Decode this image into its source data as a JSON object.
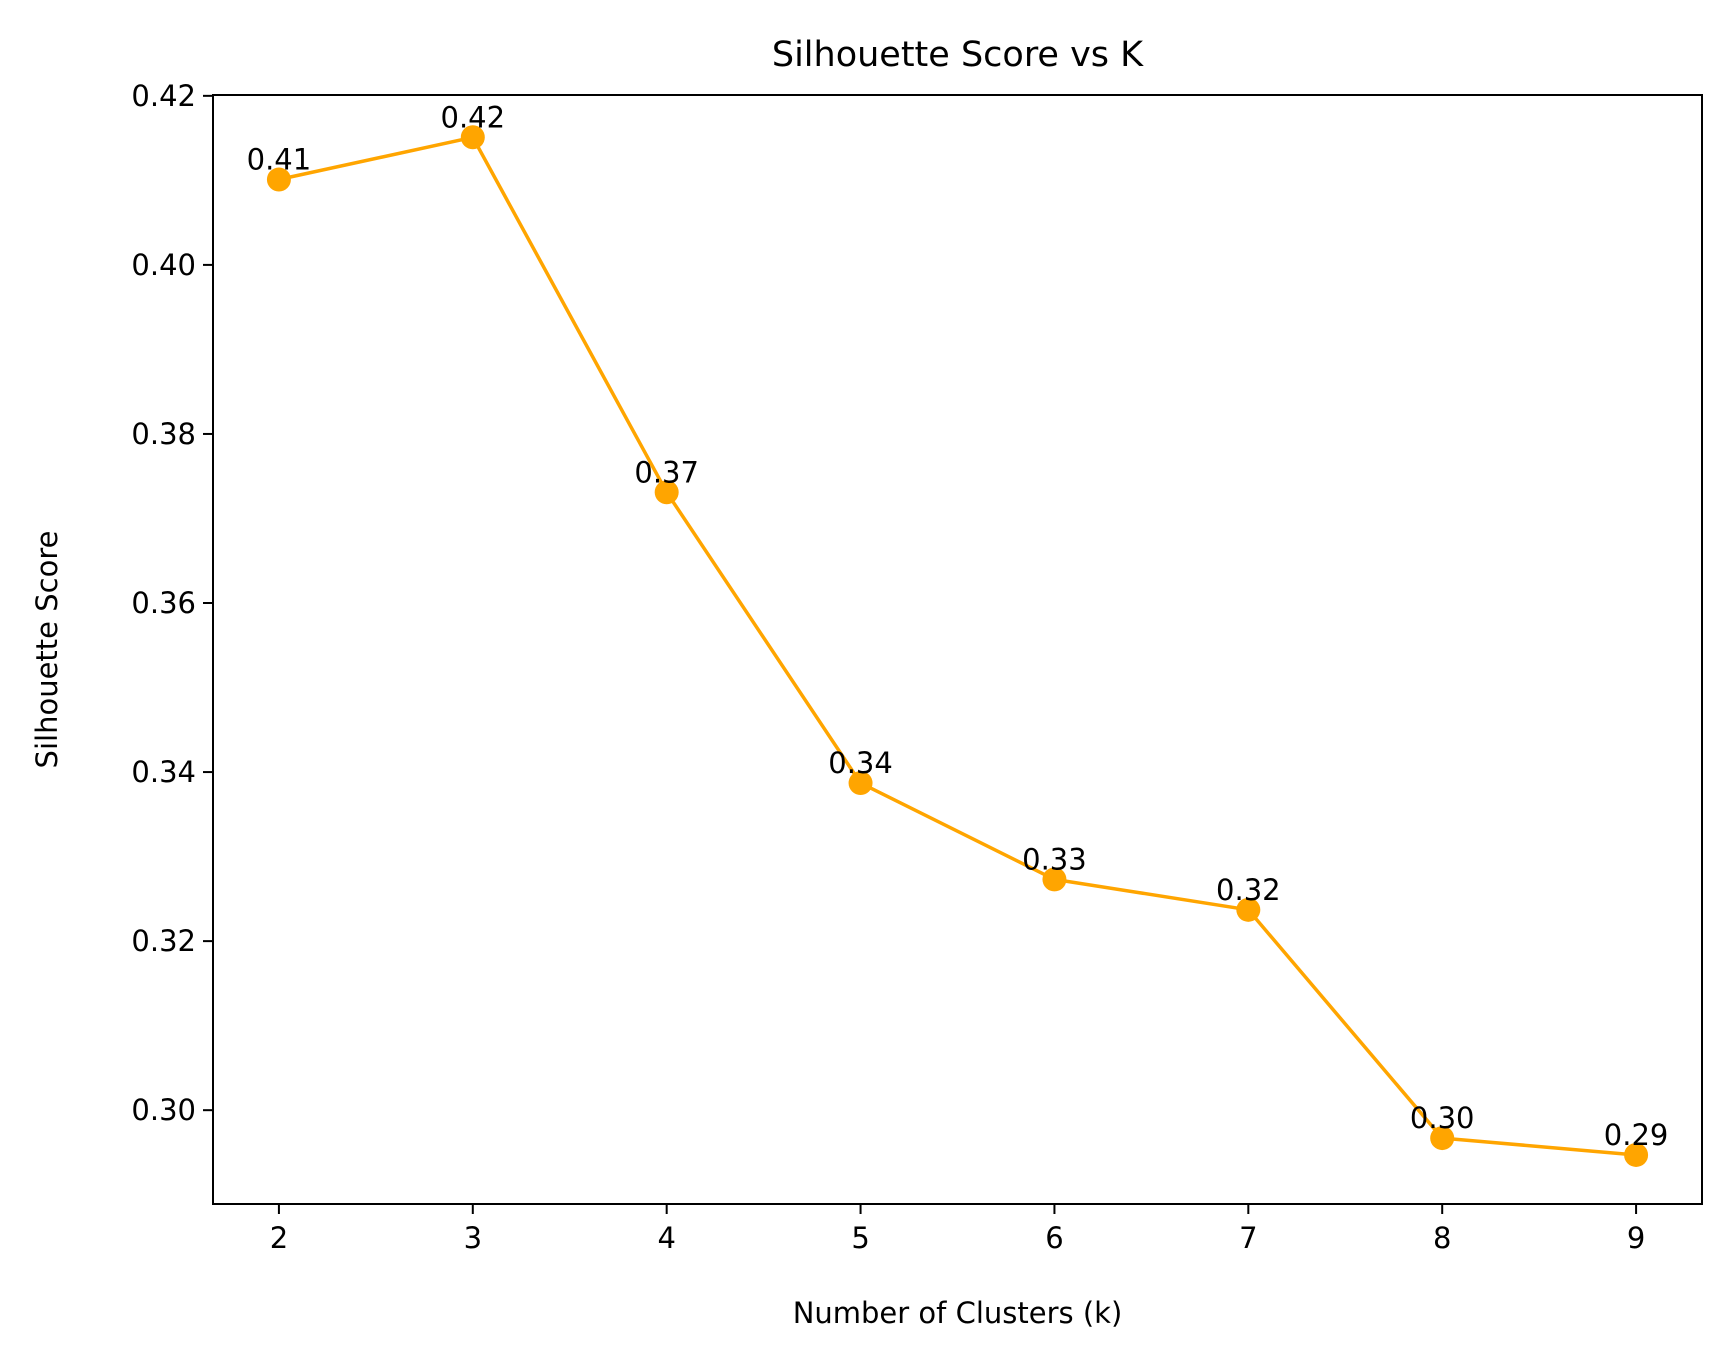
{
  "chart_data": {
    "type": "line",
    "title": "Silhouette Score vs K",
    "xlabel": "Number of Clusters (k)",
    "ylabel": "Silhouette Score",
    "x": [
      2,
      3,
      4,
      5,
      6,
      7,
      8,
      9
    ],
    "series": [
      {
        "values": [
          0.4101,
          0.4151,
          0.3731,
          0.3387,
          0.3273,
          0.3237,
          0.2967,
          0.2947
        ],
        "labels": [
          "0.41",
          "0.42",
          "0.37",
          "0.34",
          "0.33",
          "0.32",
          "0.30",
          "0.29"
        ],
        "color": "#ffa500",
        "marker": "circle"
      }
    ],
    "xticks": [
      "2",
      "3",
      "4",
      "5",
      "6",
      "7",
      "8",
      "9"
    ],
    "yticks": [
      "0.30",
      "0.32",
      "0.34",
      "0.36",
      "0.38",
      "0.40",
      "0.42"
    ],
    "xlim": [
      1.66,
      9.34
    ],
    "ylim": [
      0.2889,
      0.4201
    ],
    "grid": false,
    "legend": "none"
  }
}
